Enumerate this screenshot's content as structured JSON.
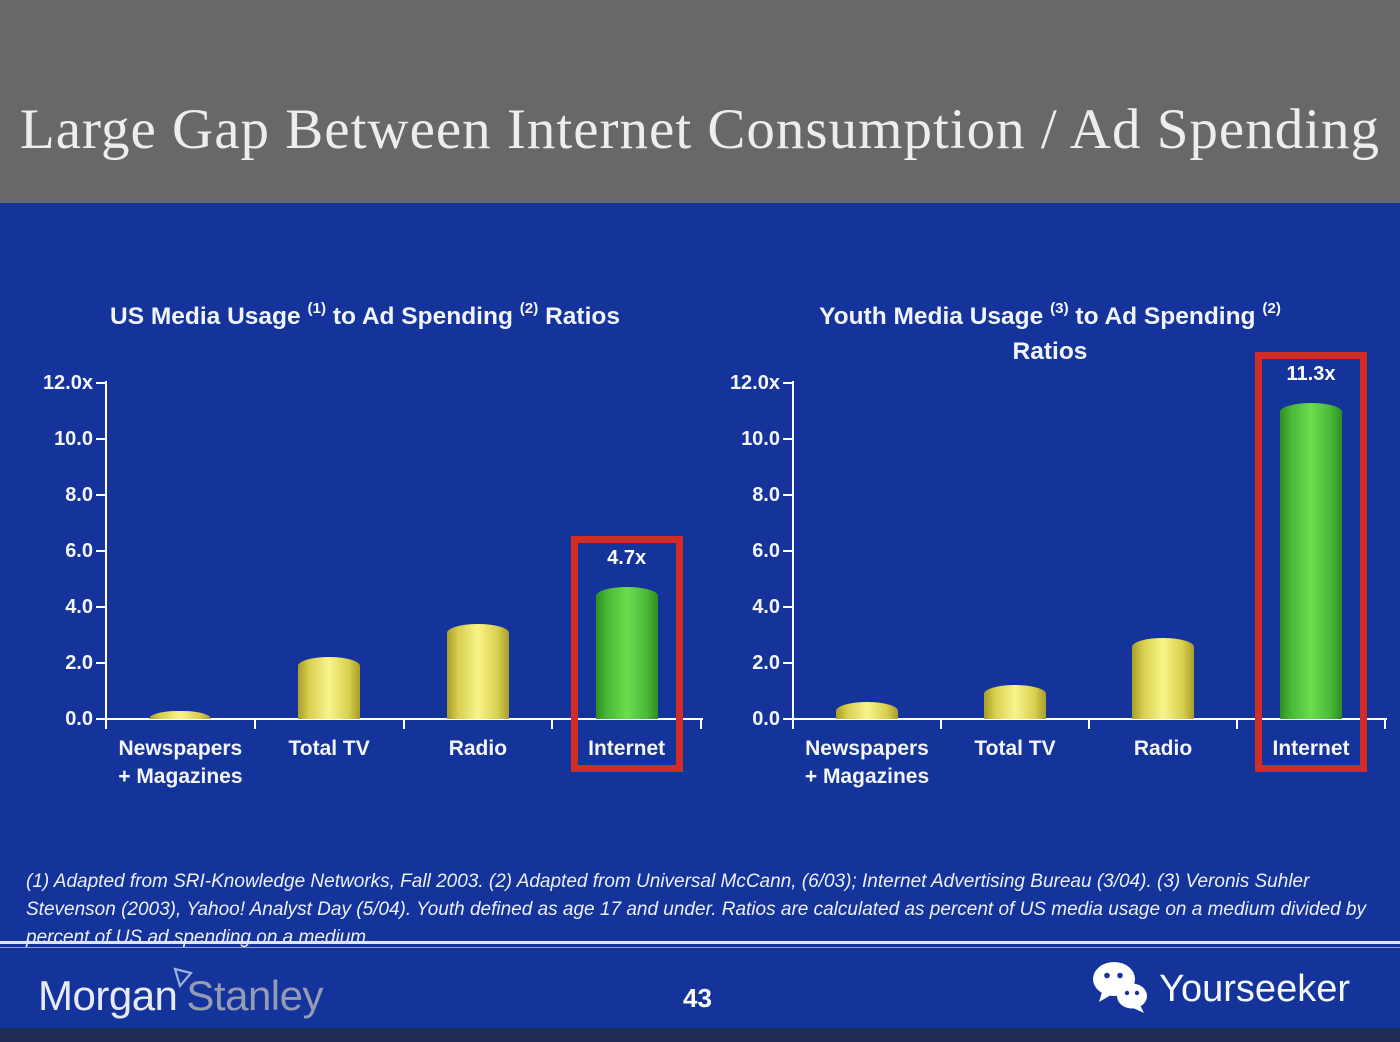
{
  "header": {
    "title": "Large Gap Between Internet Consumption / Ad Spending"
  },
  "chart_data": [
    {
      "type": "bar",
      "title": "US Media Usage (1) to Ad Spending (2) Ratios",
      "title_lines": [
        [
          {
            "text": "US Media Usage "
          },
          {
            "text": "(1)",
            "sup": true
          },
          {
            "text": " to Ad Spending "
          },
          {
            "text": "(2)",
            "sup": true
          },
          {
            "text": " Ratios"
          }
        ]
      ],
      "categories": [
        "Newspapers\n+ Magazines",
        "Total TV",
        "Radio",
        "Internet"
      ],
      "values": [
        0.3,
        2.2,
        3.4,
        4.7
      ],
      "bar_colors": [
        "yellow",
        "yellow",
        "yellow",
        "green"
      ],
      "highlight_index": 3,
      "highlight_label": "4.7x",
      "xlabel": "",
      "ylabel": "",
      "ylim": [
        0,
        12
      ],
      "ytick_values": [
        12,
        10,
        8,
        6,
        4,
        2,
        0
      ],
      "ytick_labels": [
        "12.0x",
        "10.0",
        "8.0",
        "6.0",
        "4.0",
        "2.0",
        "0.0"
      ],
      "grid": false,
      "legend": false
    },
    {
      "type": "bar",
      "title": "Youth Media Usage (3) to Ad Spending (2) Ratios",
      "title_lines": [
        [
          {
            "text": "Youth Media Usage "
          },
          {
            "text": "(3)",
            "sup": true
          },
          {
            "text": " to Ad Spending "
          },
          {
            "text": "(2)",
            "sup": true
          }
        ],
        [
          {
            "text": "Ratios"
          }
        ]
      ],
      "categories": [
        "Newspapers\n+ Magazines",
        "Total TV",
        "Radio",
        "Internet"
      ],
      "values": [
        0.6,
        1.2,
        2.9,
        11.3
      ],
      "bar_colors": [
        "yellow",
        "yellow",
        "yellow",
        "green"
      ],
      "highlight_index": 3,
      "highlight_label": "11.3x",
      "xlabel": "",
      "ylabel": "",
      "ylim": [
        0,
        12
      ],
      "ytick_values": [
        12,
        10,
        8,
        6,
        4,
        2,
        0
      ],
      "ytick_labels": [
        "12.0x",
        "10.0",
        "8.0",
        "6.0",
        "4.0",
        "2.0",
        "0.0"
      ],
      "grid": false,
      "legend": false
    }
  ],
  "footnote": {
    "text": "(1) Adapted from SRI-Knowledge Networks, Fall 2003.  (2) Adapted from Universal McCann, (6/03); Internet Advertising Bureau (3/04). (3) Veronis Suhler Stevenson (2003), Yahoo! Analyst Day (5/04).  Youth defined as age 17 and under.  Ratios are calculated as percent of US media usage on a medium divided by percent of US ad spending on a medium."
  },
  "footer": {
    "brand_morgan": "Morgan",
    "brand_stanley": "Stanley",
    "brand_icon": "morgan-stanley-triangle-icon",
    "page_number": "43",
    "watermark_label": "Yourseeker",
    "watermark_icon": "wechat-icon"
  },
  "colors": {
    "header_bg": "#68686a",
    "slide_bg": "#14339b",
    "bar_yellow_edge": "#a89d2a",
    "bar_yellow_mid": "#f9f488",
    "bar_green_edge": "#2e8f22",
    "bar_green_mid": "#6ade4e",
    "highlight_red": "#d32b25",
    "footer_strip": "#202e57",
    "text_white": "#f4f6fc",
    "stanley_gray": "#949cb3"
  }
}
